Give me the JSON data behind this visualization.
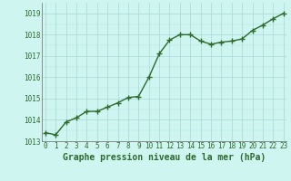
{
  "x": [
    0,
    1,
    2,
    3,
    4,
    5,
    6,
    7,
    8,
    9,
    10,
    11,
    12,
    13,
    14,
    15,
    16,
    17,
    18,
    19,
    20,
    21,
    22,
    23
  ],
  "y": [
    1013.4,
    1013.3,
    1013.9,
    1014.1,
    1014.4,
    1014.4,
    1014.6,
    1014.8,
    1015.05,
    1015.1,
    1016.0,
    1017.1,
    1017.75,
    1018.0,
    1018.0,
    1017.7,
    1017.55,
    1017.65,
    1017.7,
    1017.8,
    1018.2,
    1018.45,
    1018.75,
    1019.0
  ],
  "ylim": [
    1013.0,
    1019.5
  ],
  "xlim": [
    -0.3,
    23.3
  ],
  "yticks": [
    1013,
    1014,
    1015,
    1016,
    1017,
    1018,
    1019
  ],
  "xticks": [
    0,
    1,
    2,
    3,
    4,
    5,
    6,
    7,
    8,
    9,
    10,
    11,
    12,
    13,
    14,
    15,
    16,
    17,
    18,
    19,
    20,
    21,
    22,
    23
  ],
  "line_color": "#2d6a2d",
  "marker_color": "#2d6a2d",
  "bg_color": "#cef5f0",
  "grid_color": "#a8d8d8",
  "xlabel": "Graphe pression niveau de la mer (hPa)",
  "xlabel_color": "#2d6a2d",
  "tick_color": "#2d6a2d",
  "tick_fontsize": 5.5,
  "xlabel_fontsize": 7.0,
  "marker_size": 2.5,
  "line_width": 1.0
}
